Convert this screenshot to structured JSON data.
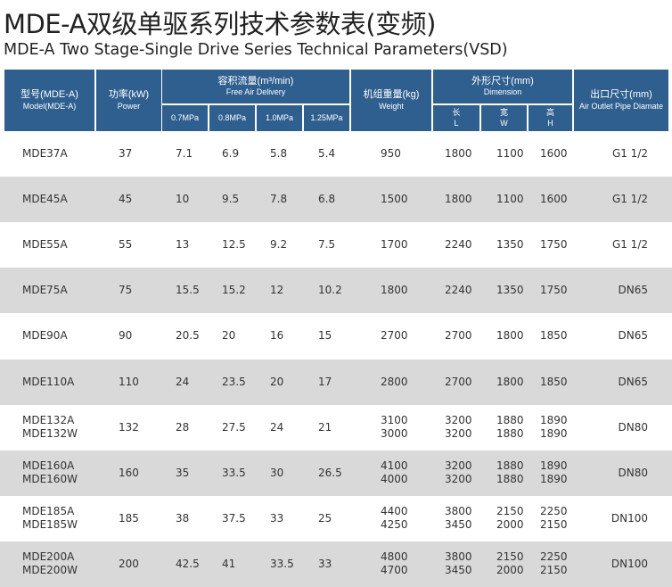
{
  "title": "MDE-A双级单驱系列技术参数表(变频)",
  "subtitle": "MDE-A Two Stage-Single Drive Series Technical Parameters(VSD)",
  "colors": {
    "header_bg": "#2e5f8f",
    "stripe": "#d9d9d9"
  },
  "header": {
    "model": {
      "cn": "型号(MDE-A)",
      "en": "Model(MDE-A)"
    },
    "power": {
      "cn": "功率(kW)",
      "en": "Power"
    },
    "flow": {
      "cn": "容积流量(m³/min)",
      "en": "Free Air Delivery",
      "pressures": [
        "0.7MPa",
        "0.8MPa",
        "1.0MPa",
        "1.25MPa"
      ]
    },
    "weight": {
      "cn": "机组重量(kg)",
      "en": "Weight"
    },
    "dimension": {
      "cn": "外形尺寸(mm)",
      "en": "Dimension",
      "l_cn": "长",
      "l": "L",
      "w_cn": "宽",
      "w": "W",
      "h_cn": "高",
      "h": "H"
    },
    "outlet": {
      "cn": "出口尺寸(mm)",
      "en": "Air Outlet Pipe Diamate"
    }
  },
  "rows": [
    {
      "model": [
        "MDE37A"
      ],
      "power": "37",
      "flow": [
        "7.1",
        "6.9",
        "5.8",
        "5.4"
      ],
      "weight": [
        "950"
      ],
      "l": [
        "1800"
      ],
      "w": [
        "1100"
      ],
      "h": [
        "1600"
      ],
      "outlet": "G1 1/2"
    },
    {
      "model": [
        "MDE45A"
      ],
      "power": "45",
      "flow": [
        "10",
        "9.5",
        "7.8",
        "6.8"
      ],
      "weight": [
        "1500"
      ],
      "l": [
        "1800"
      ],
      "w": [
        "1100"
      ],
      "h": [
        "1600"
      ],
      "outlet": "G1 1/2"
    },
    {
      "model": [
        "MDE55A"
      ],
      "power": "55",
      "flow": [
        "13",
        "12.5",
        "9.2",
        "7.5"
      ],
      "weight": [
        "1700"
      ],
      "l": [
        "2240"
      ],
      "w": [
        "1350"
      ],
      "h": [
        "1750"
      ],
      "outlet": "G1 1/2"
    },
    {
      "model": [
        "MDE75A"
      ],
      "power": "75",
      "flow": [
        "15.5",
        "15.2",
        "12",
        "10.2"
      ],
      "weight": [
        "1800"
      ],
      "l": [
        "2240"
      ],
      "w": [
        "1350"
      ],
      "h": [
        "1750"
      ],
      "outlet": "DN65"
    },
    {
      "model": [
        "MDE90A"
      ],
      "power": "90",
      "flow": [
        "20.5",
        "20",
        "16",
        "15"
      ],
      "weight": [
        "2700"
      ],
      "l": [
        "2700"
      ],
      "w": [
        "1800"
      ],
      "h": [
        "1850"
      ],
      "outlet": "DN65"
    },
    {
      "model": [
        "MDE110A"
      ],
      "power": "110",
      "flow": [
        "24",
        "23.5",
        "20",
        "17"
      ],
      "weight": [
        "2800"
      ],
      "l": [
        "2700"
      ],
      "w": [
        "1800"
      ],
      "h": [
        "1850"
      ],
      "outlet": "DN65"
    },
    {
      "model": [
        "MDE132A",
        "MDE132W"
      ],
      "power": "132",
      "flow": [
        "28",
        "27.5",
        "24",
        "21"
      ],
      "weight": [
        "3100",
        "3000"
      ],
      "l": [
        "3200",
        "3200"
      ],
      "w": [
        "1880",
        "1880"
      ],
      "h": [
        "1890",
        "1890"
      ],
      "outlet": "DN80"
    },
    {
      "model": [
        "MDE160A",
        "MDE160W"
      ],
      "power": "160",
      "flow": [
        "35",
        "33.5",
        "30",
        "26.5"
      ],
      "weight": [
        "4100",
        "4000"
      ],
      "l": [
        "3200",
        "3200"
      ],
      "w": [
        "1880",
        "1880"
      ],
      "h": [
        "1890",
        "1890"
      ],
      "outlet": "DN80"
    },
    {
      "model": [
        "MDE185A",
        "MDE185W"
      ],
      "power": "185",
      "flow": [
        "38",
        "37.5",
        "33",
        "25"
      ],
      "weight": [
        "4400",
        "4250"
      ],
      "l": [
        "3800",
        "3450"
      ],
      "w": [
        "2150",
        "2000"
      ],
      "h": [
        "2250",
        "2150"
      ],
      "outlet": "DN100"
    },
    {
      "model": [
        "MDE200A",
        "MDE200W"
      ],
      "power": "200",
      "flow": [
        "42.5",
        "41",
        "33.5",
        "33"
      ],
      "weight": [
        "4800",
        "4700"
      ],
      "l": [
        "3800",
        "3450"
      ],
      "w": [
        "2150",
        "2000"
      ],
      "h": [
        "2250",
        "2150"
      ],
      "outlet": "DN100"
    }
  ]
}
